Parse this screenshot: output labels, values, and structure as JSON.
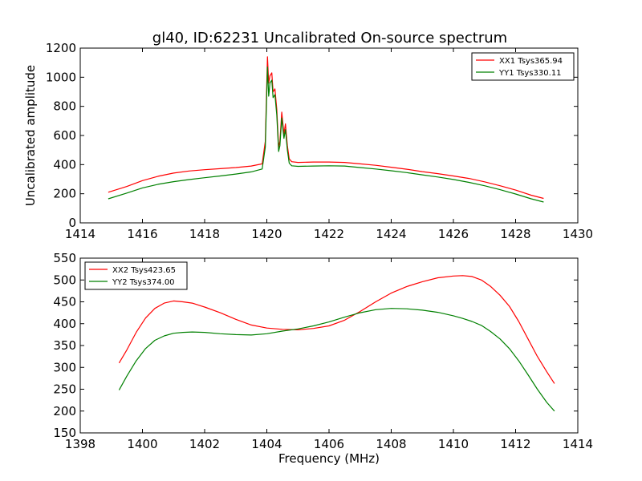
{
  "title": "gl40, ID:62231 Uncalibrated On-source spectrum",
  "colors": {
    "xx": "#ff0000",
    "yy": "#008000"
  },
  "chart_data": [
    {
      "type": "line",
      "title": "gl40, ID:62231 Uncalibrated On-source spectrum",
      "xlabel": "",
      "ylabel": "Uncalibrated amplitude",
      "xlim": [
        1414,
        1430
      ],
      "ylim": [
        0,
        1200
      ],
      "xticks": [
        1414,
        1416,
        1418,
        1420,
        1422,
        1424,
        1426,
        1428,
        1430
      ],
      "yticks": [
        0,
        200,
        400,
        600,
        800,
        1000,
        1200
      ],
      "legend_position": "top-right",
      "series": [
        {
          "name": "XX1 Tsys365.94",
          "color": "#ff0000",
          "x": [
            1414.9,
            1415.5,
            1416.0,
            1416.5,
            1417.0,
            1417.5,
            1418.0,
            1418.5,
            1419.0,
            1419.5,
            1419.85,
            1419.95,
            1420.02,
            1420.06,
            1420.1,
            1420.16,
            1420.2,
            1420.26,
            1420.32,
            1420.38,
            1420.42,
            1420.48,
            1420.55,
            1420.6,
            1420.66,
            1420.72,
            1420.8,
            1421.0,
            1421.5,
            1422.0,
            1422.5,
            1423.0,
            1423.5,
            1424.0,
            1424.5,
            1425.0,
            1425.5,
            1426.0,
            1426.5,
            1427.0,
            1427.5,
            1428.0,
            1428.5,
            1428.9
          ],
          "values": [
            210,
            250,
            290,
            320,
            342,
            356,
            365,
            372,
            380,
            390,
            405,
            560,
            1140,
            960,
            1010,
            1030,
            900,
            920,
            780,
            520,
            560,
            760,
            610,
            680,
            530,
            440,
            420,
            415,
            418,
            418,
            415,
            405,
            395,
            382,
            368,
            352,
            338,
            322,
            305,
            282,
            255,
            225,
            190,
            168
          ]
        },
        {
          "name": "YY1 Tsys330.11",
          "color": "#008000",
          "x": [
            1414.9,
            1415.5,
            1416.0,
            1416.5,
            1417.0,
            1417.5,
            1418.0,
            1418.5,
            1419.0,
            1419.5,
            1419.85,
            1419.95,
            1420.02,
            1420.06,
            1420.1,
            1420.16,
            1420.2,
            1420.26,
            1420.32,
            1420.38,
            1420.42,
            1420.48,
            1420.55,
            1420.6,
            1420.66,
            1420.72,
            1420.8,
            1421.0,
            1421.5,
            1422.0,
            1422.5,
            1423.0,
            1423.5,
            1424.0,
            1424.5,
            1425.0,
            1425.5,
            1426.0,
            1426.5,
            1427.0,
            1427.5,
            1428.0,
            1428.5,
            1428.9
          ],
          "values": [
            165,
            205,
            240,
            265,
            283,
            297,
            310,
            322,
            335,
            350,
            370,
            520,
            1070,
            870,
            960,
            980,
            860,
            880,
            740,
            490,
            530,
            720,
            580,
            640,
            500,
            410,
            392,
            388,
            390,
            392,
            390,
            380,
            370,
            358,
            345,
            330,
            315,
            298,
            278,
            255,
            228,
            198,
            165,
            143
          ]
        }
      ]
    },
    {
      "type": "line",
      "title": "",
      "xlabel": "Frequency (MHz)",
      "ylabel": "",
      "xlim": [
        1398,
        1414
      ],
      "ylim": [
        150,
        550
      ],
      "xticks": [
        1398,
        1400,
        1402,
        1404,
        1406,
        1408,
        1410,
        1412,
        1414
      ],
      "yticks": [
        150,
        200,
        250,
        300,
        350,
        400,
        450,
        500,
        550
      ],
      "legend_position": "top-left",
      "series": [
        {
          "name": "XX2 Tsys423.65",
          "color": "#ff0000",
          "x": [
            1399.25,
            1399.5,
            1399.8,
            1400.1,
            1400.4,
            1400.7,
            1401.0,
            1401.3,
            1401.6,
            1402.0,
            1402.5,
            1403.0,
            1403.5,
            1404.0,
            1404.5,
            1405.0,
            1405.5,
            1406.0,
            1406.5,
            1407.0,
            1407.5,
            1408.0,
            1408.5,
            1409.0,
            1409.5,
            1410.0,
            1410.3,
            1410.6,
            1410.9,
            1411.2,
            1411.5,
            1411.8,
            1412.1,
            1412.4,
            1412.7,
            1413.0,
            1413.25
          ],
          "values": [
            310,
            340,
            380,
            413,
            435,
            447,
            452,
            450,
            447,
            438,
            425,
            410,
            397,
            390,
            387,
            386,
            389,
            395,
            408,
            428,
            450,
            470,
            485,
            496,
            505,
            509,
            510,
            508,
            500,
            485,
            465,
            440,
            405,
            365,
            325,
            290,
            263
          ]
        },
        {
          "name": "YY2 Tsys374.00",
          "color": "#008000",
          "x": [
            1399.25,
            1399.5,
            1399.8,
            1400.1,
            1400.4,
            1400.7,
            1401.0,
            1401.3,
            1401.6,
            1402.0,
            1402.5,
            1403.0,
            1403.5,
            1404.0,
            1404.5,
            1405.0,
            1405.5,
            1406.0,
            1406.5,
            1407.0,
            1407.5,
            1408.0,
            1408.5,
            1409.0,
            1409.5,
            1410.0,
            1410.3,
            1410.6,
            1410.9,
            1411.2,
            1411.5,
            1411.8,
            1412.1,
            1412.4,
            1412.7,
            1413.0,
            1413.25
          ],
          "values": [
            248,
            280,
            315,
            343,
            362,
            372,
            378,
            380,
            381,
            380,
            377,
            375,
            374,
            377,
            383,
            388,
            395,
            404,
            415,
            425,
            432,
            435,
            434,
            431,
            426,
            418,
            412,
            405,
            396,
            382,
            365,
            343,
            315,
            283,
            250,
            220,
            200
          ]
        }
      ]
    }
  ]
}
